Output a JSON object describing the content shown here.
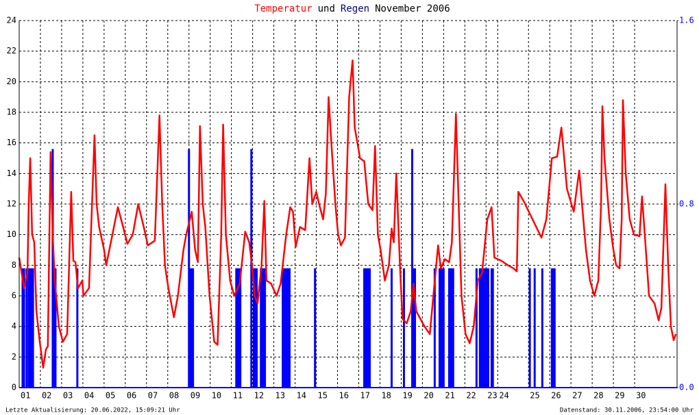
{
  "chart_data": {
    "type": "line",
    "title_parts": [
      "Temperatur",
      "und",
      "Regen",
      "November 2006"
    ],
    "xlim": [
      0,
      31
    ],
    "xticks": [
      {
        "value": 0,
        "label": "01"
      },
      {
        "value": 1,
        "label": "02"
      },
      {
        "value": 2,
        "label": "03"
      },
      {
        "value": 3,
        "label": "04"
      },
      {
        "value": 4,
        "label": "05"
      },
      {
        "value": 5,
        "label": "06"
      },
      {
        "value": 6,
        "label": "07"
      },
      {
        "value": 7,
        "label": "08"
      },
      {
        "value": 8,
        "label": "09"
      },
      {
        "value": 9,
        "label": "10"
      },
      {
        "value": 10,
        "label": "11"
      },
      {
        "value": 11,
        "label": "12"
      },
      {
        "value": 12,
        "label": "13"
      },
      {
        "value": 13,
        "label": "14"
      },
      {
        "value": 14,
        "label": "15"
      },
      {
        "value": 15,
        "label": "16"
      },
      {
        "value": 16,
        "label": "17"
      },
      {
        "value": 17,
        "label": "18"
      },
      {
        "value": 18,
        "label": "19"
      },
      {
        "value": 19,
        "label": "20"
      },
      {
        "value": 20,
        "label": "21"
      },
      {
        "value": 21,
        "label": "22"
      },
      {
        "value": 22,
        "label": "23"
      },
      {
        "value": 22.55,
        "label": "24"
      },
      {
        "value": 24,
        "label": "25"
      },
      {
        "value": 25,
        "label": "26"
      },
      {
        "value": 26,
        "label": "27"
      },
      {
        "value": 27,
        "label": "28"
      },
      {
        "value": 28,
        "label": "29"
      },
      {
        "value": 29,
        "label": "30"
      }
    ],
    "ylim": [
      0,
      24
    ],
    "yticks": [
      0,
      2,
      4,
      6,
      8,
      10,
      12,
      14,
      16,
      18,
      20,
      22,
      24
    ],
    "y2lim": [
      0,
      1.6
    ],
    "y2ticks": [
      {
        "value": 0,
        "label": "0.0"
      },
      {
        "value": 0.8,
        "label": "0.8"
      },
      {
        "value": 1.6,
        "label": "1.6"
      }
    ],
    "grid": true,
    "series": [
      {
        "type": "line",
        "color": "#ff0000",
        "x": [
          0,
          0.23,
          0.39,
          0.45,
          0.52,
          0.61,
          0.71,
          0.81,
          0.97,
          1.13,
          1.26,
          1.35,
          1.48,
          1.58,
          1.68,
          1.87,
          2.06,
          2.26,
          2.45,
          2.55,
          2.65,
          2.77,
          2.97,
          3.03,
          3.29,
          3.55,
          3.65,
          3.77,
          4,
          4.1,
          4.32,
          4.65,
          4.9,
          5.1,
          5.35,
          5.61,
          5.87,
          6.06,
          6.39,
          6.61,
          6.74,
          6.87,
          7.03,
          7.29,
          7.48,
          7.74,
          7.87,
          8.13,
          8.29,
          8.42,
          8.52,
          8.65,
          8.77,
          8.97,
          9.19,
          9.35,
          9.52,
          9.61,
          9.74,
          9.94,
          10.13,
          10.39,
          10.65,
          10.84,
          10.97,
          11.1,
          11.23,
          11.42,
          11.55,
          11.65,
          11.87,
          12.13,
          12.32,
          12.58,
          12.77,
          12.9,
          13.03,
          13.23,
          13.48,
          13.68,
          13.81,
          14,
          14.13,
          14.32,
          14.45,
          14.58,
          14.71,
          14.9,
          15.03,
          15.16,
          15.35,
          15.55,
          15.71,
          15.81,
          15.94,
          16.06,
          16.26,
          16.45,
          16.65,
          16.77,
          16.9,
          17.03,
          17.23,
          17.42,
          17.55,
          17.65,
          17.77,
          17.94,
          18.06,
          18.26,
          18.45,
          18.58,
          18.71,
          18.9,
          19.1,
          19.35,
          19.55,
          19.74,
          19.87,
          20.06,
          20.26,
          20.39,
          20.58,
          20.71,
          20.84,
          21.03,
          21.23,
          21.42,
          21.61,
          21.81,
          22.06,
          22.26,
          22.39,
          22.71,
          23.03,
          23.29,
          23.45,
          23.52,
          23.77,
          24.19,
          24.61,
          24.84,
          25.1,
          25.35,
          25.55,
          25.81,
          26.13,
          26.39,
          26.52,
          26.71,
          26.9,
          27.1,
          27.29,
          27.42,
          27.48,
          27.58,
          27.81,
          28,
          28.13,
          28.29,
          28.39,
          28.45,
          28.58,
          28.77,
          28.97,
          29.23,
          29.35,
          29.48,
          29.68,
          29.94,
          30.13,
          30.26,
          30.45,
          30.58,
          30.71,
          30.84,
          30.94
        ],
        "values": [
          8.5,
          6.5,
          7.5,
          12,
          15,
          10,
          9.5,
          5,
          3,
          1.3,
          2.5,
          2.7,
          15.4,
          10,
          7,
          4,
          3,
          3.5,
          12.8,
          8.3,
          8.2,
          6.5,
          7,
          6,
          6.5,
          16.5,
          12,
          10.5,
          9,
          8,
          9.5,
          11.8,
          10.5,
          9.4,
          10,
          12,
          10.5,
          9.3,
          9.6,
          17.8,
          12,
          8,
          6.5,
          4.6,
          6,
          9,
          10,
          11.5,
          9,
          8.2,
          17.1,
          12,
          10.5,
          6,
          3,
          2.8,
          10,
          17.2,
          10,
          7,
          6,
          6.8,
          10.2,
          9.5,
          8,
          6,
          5.5,
          8,
          12.2,
          7,
          6.8,
          6,
          6.8,
          10,
          11.8,
          11.5,
          9.2,
          10.5,
          10.3,
          15,
          12,
          12.8,
          12,
          11,
          12.7,
          19,
          16,
          12,
          10,
          9.3,
          9.8,
          19,
          21.4,
          17,
          16,
          15,
          14.8,
          12,
          11.6,
          15.8,
          10,
          9,
          7,
          8,
          10.4,
          9.5,
          14,
          8,
          4.5,
          4.2,
          5,
          6.8,
          5,
          4.5,
          4,
          3.5,
          6.5,
          9.3,
          7.8,
          8.4,
          8.2,
          9.5,
          17.9,
          12,
          6,
          3.5,
          2.9,
          4,
          7,
          7.5,
          11,
          11.8,
          8.5,
          8.3,
          8,
          7.8,
          7.6,
          12.8,
          12.2,
          11,
          9.8,
          11,
          15,
          15.1,
          17,
          13,
          11.5,
          14.2,
          12,
          9,
          7,
          6,
          7,
          12,
          18.4,
          15,
          11,
          9,
          8,
          7.8,
          11,
          18.8,
          14,
          11,
          10,
          9.9,
          12.5,
          10,
          6,
          5.5,
          4.4,
          5.2,
          13.3,
          8,
          4,
          3.1,
          3.5
        ]
      },
      {
        "type": "bar",
        "axis": "y2",
        "color": "#0000ff",
        "x": [
          0.16,
          0.23,
          0.35,
          0.45,
          0.52,
          0.58,
          0.65,
          1.58,
          1.65,
          1.71,
          2.74,
          8,
          8.06,
          8.13,
          8.19,
          10.23,
          10.29,
          10.35,
          10.42,
          10.94,
          11.06,
          11.13,
          11.19,
          11.39,
          11.45,
          11.52,
          11.58,
          12.42,
          12.48,
          12.55,
          12.61,
          12.68,
          12.74,
          13.94,
          16.26,
          16.32,
          16.39,
          16.45,
          16.52,
          17.55,
          18.13,
          18.52,
          18.58,
          18.65,
          19.58,
          19.81,
          19.87,
          19.94,
          20,
          20.26,
          20.32,
          20.39,
          20.45,
          21.55,
          21.71,
          21.77,
          21.84,
          21.9,
          21.97,
          22.03,
          22.1,
          22.26,
          22.32,
          24.06,
          24.29,
          24.65,
          25.1,
          25.16,
          25.23
        ],
        "values": [
          0.52,
          0.52,
          0.52,
          0.52,
          0.52,
          0.52,
          0.52,
          1.04,
          0.52,
          0.52,
          0.52,
          1.04,
          0.52,
          0.52,
          0.52,
          0.52,
          0.52,
          0.52,
          0.52,
          1.04,
          0.52,
          0.52,
          0.52,
          0.52,
          0.52,
          0.52,
          0.52,
          0.52,
          0.52,
          0.52,
          0.52,
          0.52,
          0.52,
          0.52,
          0.52,
          0.52,
          0.52,
          0.52,
          0.52,
          0.52,
          0.52,
          1.04,
          0.52,
          0.52,
          0.52,
          0.52,
          0.52,
          0.52,
          0.52,
          0.52,
          0.52,
          0.52,
          0.52,
          0.52,
          0.52,
          0.52,
          0.52,
          0.52,
          0.52,
          0.52,
          0.52,
          0.52,
          0.52,
          0.52,
          0.52,
          0.52,
          0.52,
          0.52,
          0.52
        ]
      }
    ],
    "footer_left": "Letzte Aktualisierung: 20.06.2022, 15:09:21 Uhr",
    "footer_right": "Datenstand: 30.11.2006, 23:54:00 Uhr"
  }
}
